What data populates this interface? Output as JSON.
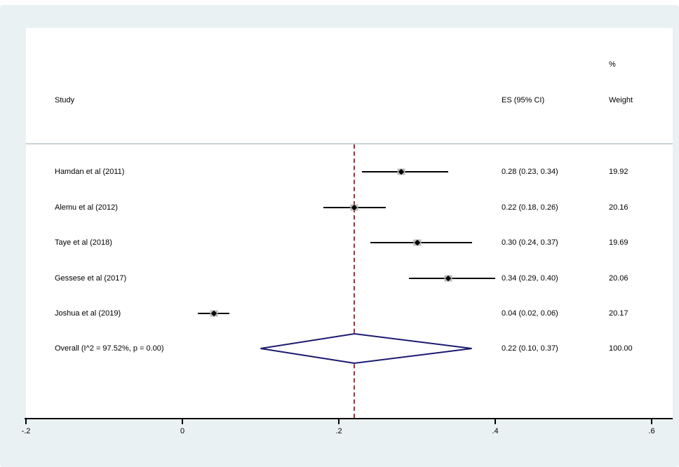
{
  "header": {
    "study_col": "Study",
    "es_col": "ES (95% CI)",
    "pct": "%",
    "weight_col": "Weight"
  },
  "colors": {
    "panel_bg": "#eaf1f3",
    "plot_bg": "#ffffff",
    "ci_line": "#000000",
    "marker_box": "#b9b9b9",
    "marker_dot": "#000000",
    "diamond_stroke": "#1a1a70",
    "null_line": "#8b3a3a",
    "axis": "#000000",
    "separator": "#c9d2d4"
  },
  "chart_data": {
    "type": "forest",
    "title": "",
    "xlim": [
      -0.2,
      0.6
    ],
    "axis_ticks": [
      {
        "label": "-.2",
        "value": -0.2
      },
      {
        "label": "0",
        "value": 0.0
      },
      {
        "label": ".2",
        "value": 0.2
      },
      {
        "label": ".4",
        "value": 0.4
      },
      {
        "label": ".6",
        "value": 0.6
      }
    ],
    "null_line_value": 0.22,
    "studies": [
      {
        "label": "Hamdan et al (2011)",
        "es": 0.28,
        "ci_low": 0.23,
        "ci_high": 0.34,
        "es_text": "0.28 (0.23, 0.34)",
        "weight_text": "19.92"
      },
      {
        "label": "Alemu et al (2012)",
        "es": 0.22,
        "ci_low": 0.18,
        "ci_high": 0.26,
        "es_text": "0.22 (0.18, 0.26)",
        "weight_text": "20.16"
      },
      {
        "label": "Taye et al (2018)",
        "es": 0.3,
        "ci_low": 0.24,
        "ci_high": 0.37,
        "es_text": "0.30 (0.24, 0.37)",
        "weight_text": "19.69"
      },
      {
        "label": "Gessese et al (2017)",
        "es": 0.34,
        "ci_low": 0.29,
        "ci_high": 0.4,
        "es_text": "0.34 (0.29, 0.40)",
        "weight_text": "20.06"
      },
      {
        "label": "Joshua et al (2019)",
        "es": 0.04,
        "ci_low": 0.02,
        "ci_high": 0.06,
        "es_text": "0.04 (0.02, 0.06)",
        "weight_text": "20.17"
      }
    ],
    "overall": {
      "label": "Overall  (I^2 = 97.52%, p = 0.00)",
      "es": 0.22,
      "ci_low": 0.1,
      "ci_high": 0.37,
      "es_text": "0.22 (0.10, 0.37)",
      "weight_text": "100.00"
    }
  }
}
